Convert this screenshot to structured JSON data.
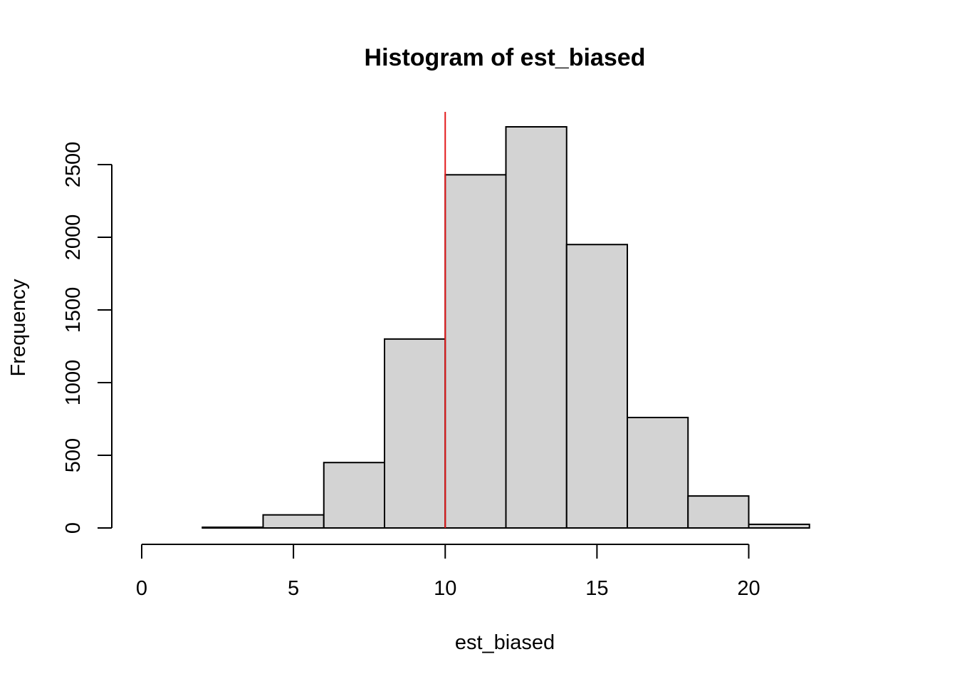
{
  "chart_data": {
    "type": "bar",
    "title": "Histogram of est_biased",
    "xlabel": "est_biased",
    "ylabel": "Frequency",
    "xlim": [
      0,
      24
    ],
    "ylim": [
      0,
      2800
    ],
    "x_ticks": [
      0,
      5,
      10,
      15,
      20
    ],
    "y_ticks": [
      0,
      500,
      1000,
      1500,
      2000,
      2500
    ],
    "bins": [
      {
        "x0": 0,
        "x1": 2,
        "count": 0
      },
      {
        "x0": 2,
        "x1": 4,
        "count": 5
      },
      {
        "x0": 4,
        "x1": 6,
        "count": 90
      },
      {
        "x0": 6,
        "x1": 8,
        "count": 450
      },
      {
        "x0": 8,
        "x1": 10,
        "count": 1300
      },
      {
        "x0": 10,
        "x1": 12,
        "count": 2430
      },
      {
        "x0": 12,
        "x1": 14,
        "count": 2760
      },
      {
        "x0": 14,
        "x1": 16,
        "count": 1950
      },
      {
        "x0": 16,
        "x1": 18,
        "count": 760
      },
      {
        "x0": 18,
        "x1": 20,
        "count": 220
      },
      {
        "x0": 20,
        "x1": 22,
        "count": 25
      },
      {
        "x0": 22,
        "x1": 24,
        "count": 0
      }
    ],
    "reference_line": {
      "x": 10,
      "color": "#e31a1c"
    },
    "bar_color": "#d3d3d3",
    "grid": false,
    "legend": "none"
  }
}
